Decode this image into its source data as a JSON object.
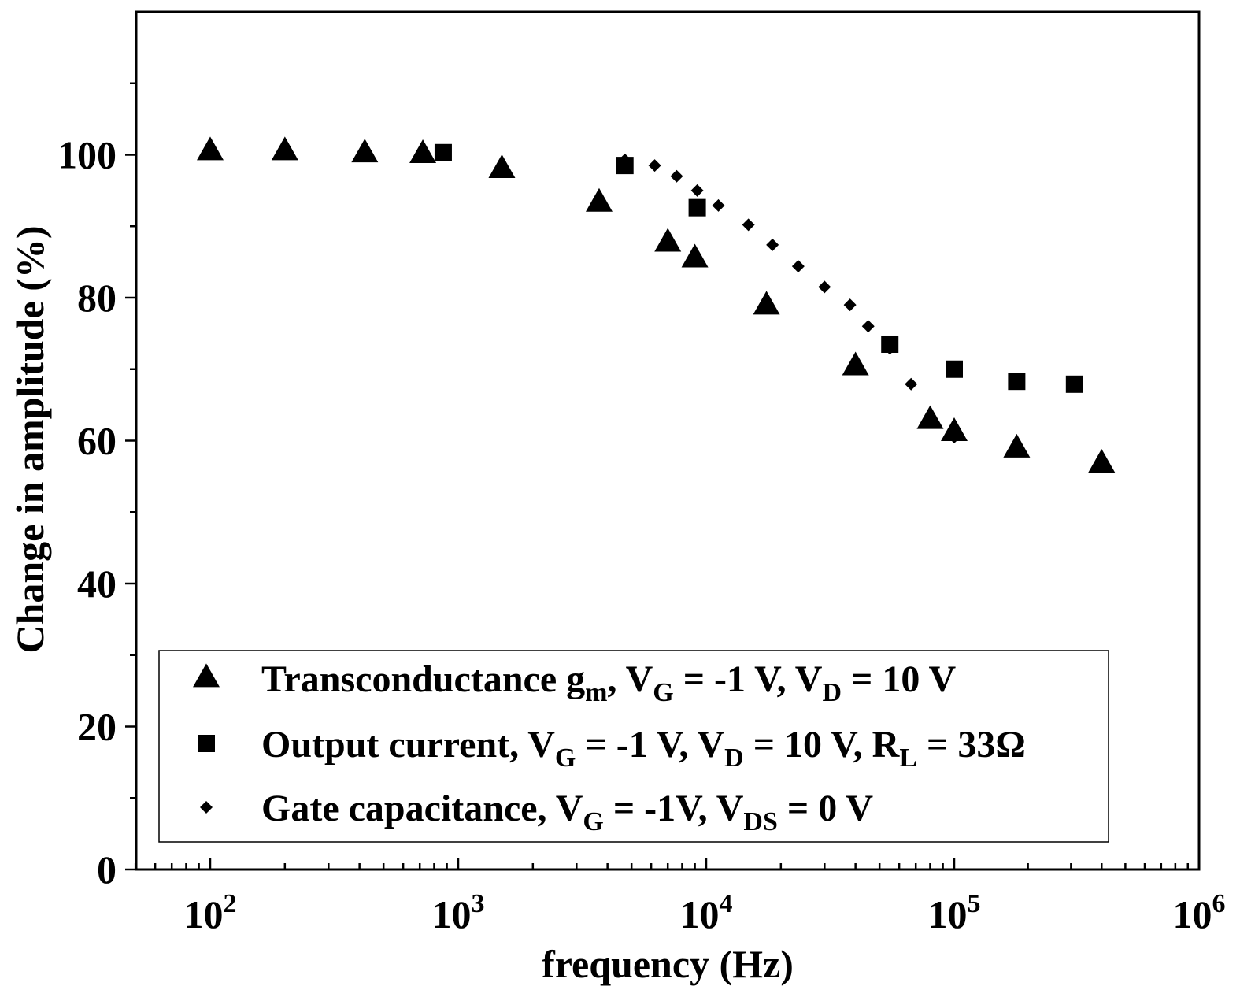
{
  "chart_data": {
    "type": "scatter",
    "title": "",
    "xlabel": "frequency (Hz)",
    "ylabel": "Change in amplitude (%)",
    "xscale": "log",
    "xlim": [
      50,
      1000000
    ],
    "ylim": [
      0,
      120
    ],
    "x_ticks": [
      {
        "base": "10",
        "exp": "2",
        "value": 100
      },
      {
        "base": "10",
        "exp": "3",
        "value": 1000
      },
      {
        "base": "10",
        "exp": "4",
        "value": 10000
      },
      {
        "base": "10",
        "exp": "5",
        "value": 100000
      },
      {
        "base": "10",
        "exp": "6",
        "value": 1000000
      }
    ],
    "y_ticks": [
      "0",
      "20",
      "40",
      "60",
      "80",
      "100"
    ],
    "legend_position": "bottom-left",
    "series": [
      {
        "name": "Transconductance g_m, V_G = -1 V, V_D = 10 V",
        "marker": "triangle",
        "x": [
          100,
          200,
          420,
          720,
          1500,
          3700,
          7000,
          9000,
          17500,
          40000,
          80000,
          100000,
          180000,
          400000
        ],
        "y": [
          100.5,
          100.5,
          100.2,
          100.1,
          98.0,
          93.3,
          87.7,
          85.5,
          78.9,
          70.4,
          62.9,
          61.2,
          58.9,
          56.8
        ]
      },
      {
        "name": "Output current, V_G = -1 V, V_D = 10 V, R_L = 33Ω",
        "marker": "square",
        "x": [
          870,
          4700,
          9200,
          55000,
          100000,
          180000,
          310000
        ],
        "y": [
          100.3,
          98.5,
          92.6,
          73.5,
          70.0,
          68.3,
          67.9
        ]
      },
      {
        "name": "Gate capacitance, V_G = -1V, V_DS = 0 V",
        "marker": "diamond",
        "x": [
          4700,
          6200,
          7600,
          9200,
          11200,
          14800,
          18500,
          23500,
          30000,
          38000,
          45000,
          55000,
          67000,
          100000
        ],
        "y": [
          99.3,
          98.5,
          97.0,
          95.0,
          92.9,
          90.2,
          87.4,
          84.4,
          81.5,
          79.0,
          76.0,
          72.9,
          67.9,
          60.5
        ]
      }
    ],
    "legend": [
      {
        "marker": "triangle",
        "lead": "Transconductance g",
        "parts": [
          [
            "m",
            "sub"
          ],
          [
            ", V",
            "n"
          ],
          [
            "G",
            "sub"
          ],
          [
            " = -1 V, V",
            "n"
          ],
          [
            "D",
            "sub"
          ],
          [
            " = 10 V",
            "n"
          ]
        ]
      },
      {
        "marker": "square",
        "lead": "Output current, V",
        "parts": [
          [
            "G",
            "sub"
          ],
          [
            " = -1 V, V",
            "n"
          ],
          [
            "D",
            "sub"
          ],
          [
            " = 10 V, R",
            "n"
          ],
          [
            "L",
            "sub"
          ],
          [
            " = 33Ω",
            "n"
          ]
        ]
      },
      {
        "marker": "diamond",
        "lead": "Gate capacitance, V",
        "parts": [
          [
            "G",
            "sub"
          ],
          [
            " = -1V, V",
            "n"
          ],
          [
            "DS",
            "sub"
          ],
          [
            " = 0 V",
            "n"
          ]
        ]
      }
    ],
    "colors": {
      "marker": "#000000",
      "axis": "#000000",
      "background": "#ffffff"
    }
  }
}
